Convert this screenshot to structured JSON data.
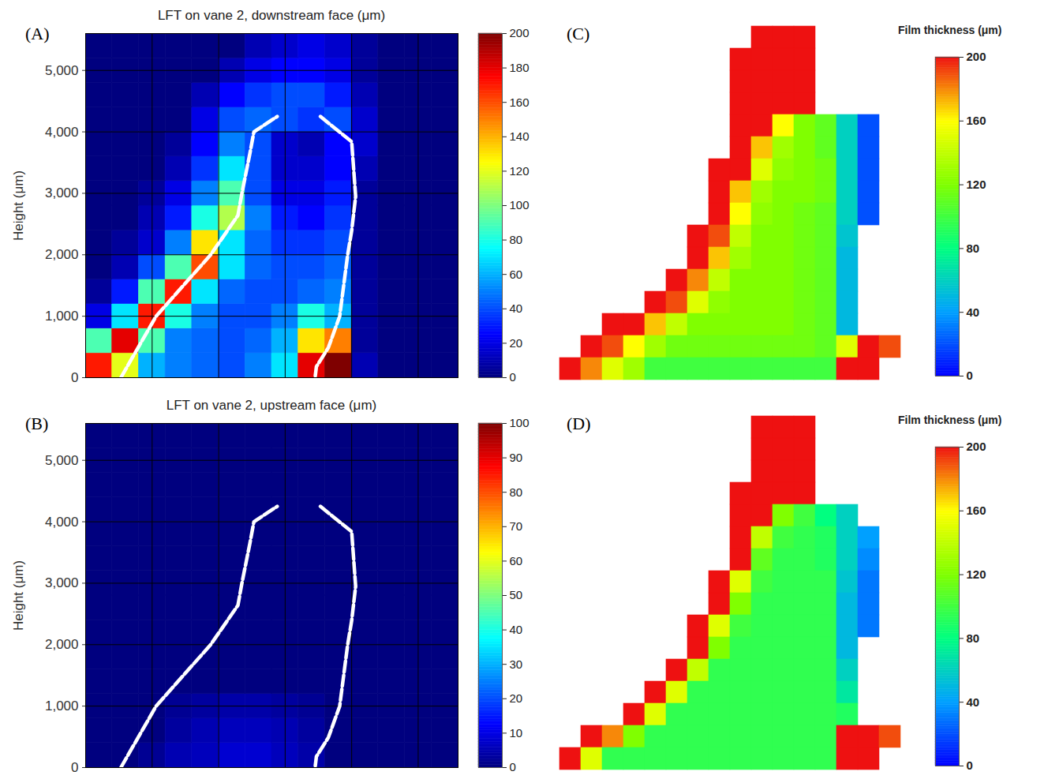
{
  "chart_data": [
    {
      "type": "heatmap",
      "panel": "(A)",
      "title": "LFT on vane 2, downstream face (μm)",
      "y_label": "Height (μm)",
      "xlim": [
        0,
        5600
      ],
      "ylim": [
        0,
        5600
      ],
      "xticks": [
        1000,
        2000,
        3000,
        4000,
        5000
      ],
      "yticks": [
        0,
        {
          "value": 1000,
          "label": "1,000"
        },
        {
          "value": 2000,
          "label": "2,000"
        },
        {
          "value": 3000,
          "label": "3,000"
        },
        {
          "value": 4000,
          "label": "4,000"
        },
        {
          "value": 5000,
          "label": "5,000"
        }
      ],
      "tick_labels": "y",
      "grid": true,
      "x_bins": [
        0,
        400,
        800,
        1200,
        1600,
        2000,
        2400,
        2800,
        3200,
        3600,
        4000,
        4400,
        4800,
        5200,
        5600
      ],
      "y_bins": [
        0,
        400,
        800,
        1200,
        1600,
        2000,
        2400,
        2800,
        3200,
        3600,
        4000,
        4400,
        4800,
        5200,
        5600
      ],
      "cells": [
        [
          170,
          120,
          60,
          50,
          45,
          40,
          50,
          70,
          180,
          200,
          10,
          0,
          0,
          0
        ],
        [
          90,
          180,
          90,
          50,
          45,
          40,
          45,
          60,
          130,
          150,
          5,
          0,
          0,
          0
        ],
        [
          20,
          70,
          170,
          80,
          50,
          40,
          40,
          50,
          80,
          60,
          5,
          0,
          0,
          0
        ],
        [
          5,
          30,
          90,
          170,
          70,
          45,
          40,
          40,
          45,
          50,
          5,
          0,
          0,
          0
        ],
        [
          0,
          10,
          40,
          90,
          160,
          70,
          45,
          40,
          40,
          45,
          5,
          0,
          0,
          0
        ],
        [
          0,
          5,
          15,
          50,
          130,
          70,
          45,
          35,
          35,
          40,
          5,
          0,
          0,
          0
        ],
        [
          0,
          0,
          10,
          30,
          80,
          110,
          50,
          30,
          25,
          35,
          5,
          0,
          0,
          0
        ],
        [
          0,
          0,
          5,
          20,
          50,
          90,
          40,
          20,
          20,
          30,
          5,
          0,
          0,
          0
        ],
        [
          0,
          0,
          0,
          10,
          35,
          70,
          40,
          15,
          15,
          25,
          10,
          0,
          0,
          0
        ],
        [
          0,
          0,
          0,
          5,
          25,
          50,
          40,
          15,
          10,
          25,
          15,
          0,
          0,
          0
        ],
        [
          0,
          0,
          0,
          0,
          20,
          40,
          45,
          40,
          35,
          40,
          15,
          0,
          0,
          0
        ],
        [
          0,
          0,
          0,
          0,
          10,
          25,
          35,
          40,
          40,
          30,
          10,
          0,
          0,
          0
        ],
        [
          0,
          0,
          0,
          0,
          0,
          10,
          20,
          25,
          25,
          20,
          5,
          0,
          0,
          0
        ],
        [
          0,
          0,
          0,
          0,
          0,
          0,
          10,
          15,
          20,
          15,
          5,
          0,
          0,
          0
        ]
      ],
      "outline": {
        "x": [
          530,
          1060,
          1470,
          1880,
          2290,
          2350,
          2470,
          2530,
          2880,
          null,
          3530,
          4000,
          4060,
          4000,
          3940,
          3820,
          3650,
          3470,
          3450
        ],
        "y": [
          0,
          1000,
          1500,
          2000,
          2640,
          3000,
          3650,
          4000,
          4250,
          null,
          4250,
          3840,
          2950,
          2390,
          2000,
          1000,
          490,
          180,
          0
        ]
      },
      "colorbar": {
        "lim": [
          0,
          200
        ],
        "ticks": [
          0,
          20,
          40,
          60,
          80,
          100,
          120,
          140,
          160,
          180,
          200
        ]
      }
    },
    {
      "type": "heatmap",
      "panel": "(B)",
      "title": "LFT on vane 2, upstream face (μm)",
      "y_label": "Height (μm)",
      "xlim": [
        0,
        5600
      ],
      "ylim": [
        0,
        5600
      ],
      "xticks": [
        1000,
        2000,
        3000,
        4000,
        5000
      ],
      "yticks": [
        0,
        {
          "value": 1000,
          "label": "1,000"
        },
        {
          "value": 2000,
          "label": "2,000"
        },
        {
          "value": 3000,
          "label": "3,000"
        },
        {
          "value": 4000,
          "label": "4,000"
        },
        {
          "value": 5000,
          "label": "5,000"
        }
      ],
      "tick_labels": "y",
      "grid": true,
      "x_bins": [
        0,
        400,
        800,
        1200,
        1600,
        2000,
        2400,
        2800,
        3200,
        3600,
        4000,
        4400,
        4800,
        5200,
        5600
      ],
      "y_bins": [
        0,
        400,
        800,
        1200,
        1600,
        2000,
        2400,
        2800,
        3200,
        3600,
        4000,
        4400,
        4800,
        5200,
        5600
      ],
      "cells": [
        [
          0,
          0,
          2,
          5,
          6,
          8,
          8,
          6,
          4,
          0,
          0,
          0,
          0,
          0
        ],
        [
          0,
          0,
          0,
          3,
          5,
          6,
          6,
          5,
          3,
          0,
          0,
          0,
          0,
          0
        ],
        [
          0,
          0,
          0,
          2,
          3,
          4,
          4,
          3,
          2,
          0,
          0,
          0,
          0,
          0
        ],
        [
          0,
          0,
          0,
          0,
          0,
          0,
          0,
          0,
          0,
          0,
          0,
          0,
          0,
          0
        ],
        [
          0,
          0,
          0,
          0,
          0,
          0,
          0,
          0,
          0,
          0,
          0,
          0,
          0,
          0
        ],
        [
          0,
          0,
          0,
          0,
          0,
          0,
          0,
          0,
          0,
          0,
          0,
          0,
          0,
          0
        ],
        [
          0,
          0,
          0,
          0,
          0,
          0,
          0,
          0,
          0,
          0,
          0,
          0,
          0,
          0
        ],
        [
          0,
          0,
          0,
          0,
          0,
          0,
          0,
          0,
          0,
          0,
          0,
          0,
          0,
          0
        ],
        [
          0,
          0,
          0,
          0,
          0,
          0,
          0,
          0,
          0,
          0,
          0,
          0,
          0,
          0
        ],
        [
          0,
          0,
          0,
          0,
          0,
          0,
          0,
          0,
          0,
          0,
          0,
          0,
          0,
          0
        ],
        [
          0,
          0,
          0,
          0,
          0,
          0,
          0,
          0,
          0,
          0,
          0,
          0,
          0,
          0
        ],
        [
          0,
          0,
          0,
          0,
          0,
          0,
          0,
          0,
          0,
          0,
          0,
          0,
          0,
          0
        ],
        [
          0,
          0,
          0,
          0,
          0,
          0,
          0,
          0,
          0,
          0,
          0,
          0,
          0,
          0
        ],
        [
          0,
          0,
          0,
          0,
          0,
          0,
          0,
          0,
          0,
          0,
          0,
          0,
          0,
          0
        ]
      ],
      "outline": {
        "x": [
          530,
          1060,
          1470,
          1880,
          2290,
          2350,
          2470,
          2530,
          2880,
          null,
          3530,
          4000,
          4060,
          4000,
          3940,
          3820,
          3650,
          3470,
          3450
        ],
        "y": [
          0,
          1000,
          1500,
          2000,
          2640,
          3000,
          3650,
          4000,
          4250,
          null,
          4250,
          3840,
          2950,
          2390,
          2000,
          1000,
          490,
          180,
          0
        ]
      },
      "colorbar": {
        "lim": [
          0,
          100
        ],
        "ticks": [
          0,
          10,
          20,
          30,
          40,
          50,
          60,
          70,
          80,
          90,
          100
        ]
      }
    },
    {
      "type": "heatmap",
      "panel": "(C)",
      "tick_labels": false,
      "cells": [
        [
          null,
          null,
          null,
          null,
          null,
          null,
          null,
          null,
          null,
          200,
          200,
          200,
          null,
          null,
          null,
          null
        ],
        [
          null,
          null,
          null,
          null,
          null,
          null,
          null,
          null,
          200,
          200,
          200,
          200,
          null,
          null,
          null,
          null
        ],
        [
          null,
          null,
          null,
          null,
          null,
          null,
          null,
          null,
          200,
          200,
          200,
          200,
          null,
          null,
          null,
          null
        ],
        [
          null,
          null,
          null,
          null,
          null,
          null,
          null,
          null,
          200,
          200,
          200,
          200,
          null,
          null,
          null,
          null
        ],
        [
          null,
          null,
          null,
          null,
          null,
          null,
          null,
          null,
          200,
          200,
          160,
          120,
          110,
          60,
          20,
          null
        ],
        [
          null,
          null,
          null,
          null,
          null,
          null,
          null,
          null,
          200,
          170,
          130,
          120,
          110,
          60,
          20,
          null
        ],
        [
          null,
          null,
          null,
          null,
          null,
          null,
          null,
          200,
          200,
          150,
          125,
          120,
          115,
          60,
          20,
          null
        ],
        [
          null,
          null,
          null,
          null,
          null,
          null,
          null,
          200,
          170,
          130,
          120,
          120,
          115,
          60,
          20,
          null
        ],
        [
          null,
          null,
          null,
          null,
          null,
          null,
          null,
          200,
          160,
          125,
          120,
          115,
          110,
          60,
          20,
          null
        ],
        [
          null,
          null,
          null,
          null,
          null,
          null,
          200,
          190,
          140,
          120,
          120,
          115,
          110,
          55,
          null,
          null
        ],
        [
          null,
          null,
          null,
          null,
          null,
          null,
          200,
          170,
          130,
          120,
          120,
          115,
          110,
          50,
          null,
          null
        ],
        [
          null,
          null,
          null,
          null,
          null,
          200,
          180,
          140,
          120,
          120,
          120,
          115,
          110,
          50,
          null,
          null
        ],
        [
          null,
          null,
          null,
          null,
          200,
          190,
          150,
          125,
          120,
          120,
          120,
          115,
          110,
          50,
          null,
          null
        ],
        [
          null,
          null,
          200,
          200,
          170,
          140,
          120,
          120,
          120,
          120,
          120,
          115,
          110,
          50,
          null,
          null
        ],
        [
          null,
          200,
          190,
          160,
          130,
          115,
          115,
          115,
          115,
          115,
          115,
          115,
          110,
          150,
          200,
          190
        ],
        [
          200,
          180,
          150,
          130,
          100,
          100,
          100,
          100,
          100,
          100,
          100,
          100,
          100,
          200,
          200,
          null
        ]
      ],
      "colorbar": {
        "title": "Film thickness (μm)",
        "lim": [
          0,
          200
        ],
        "ticks": [
          0,
          40,
          80,
          120,
          160,
          200
        ]
      }
    },
    {
      "type": "heatmap",
      "panel": "(D)",
      "tick_labels": false,
      "cells": [
        [
          null,
          null,
          null,
          null,
          null,
          null,
          null,
          null,
          null,
          200,
          200,
          200,
          null,
          null,
          null,
          null
        ],
        [
          null,
          null,
          null,
          null,
          null,
          null,
          null,
          null,
          null,
          200,
          200,
          200,
          null,
          null,
          null,
          null
        ],
        [
          null,
          null,
          null,
          null,
          null,
          null,
          null,
          null,
          null,
          200,
          200,
          200,
          null,
          null,
          null,
          null
        ],
        [
          null,
          null,
          null,
          null,
          null,
          null,
          null,
          null,
          200,
          200,
          200,
          200,
          null,
          null,
          null,
          null
        ],
        [
          null,
          null,
          null,
          null,
          null,
          null,
          null,
          null,
          200,
          200,
          120,
          100,
          80,
          60,
          null,
          null
        ],
        [
          null,
          null,
          null,
          null,
          null,
          null,
          null,
          null,
          200,
          140,
          100,
          95,
          90,
          60,
          40,
          null
        ],
        [
          null,
          null,
          null,
          null,
          null,
          null,
          null,
          null,
          200,
          110,
          95,
          95,
          90,
          60,
          35,
          null
        ],
        [
          null,
          null,
          null,
          null,
          null,
          null,
          null,
          200,
          150,
          100,
          95,
          95,
          95,
          55,
          30,
          null
        ],
        [
          null,
          null,
          null,
          null,
          null,
          null,
          null,
          200,
          120,
          95,
          95,
          95,
          95,
          50,
          30,
          null
        ],
        [
          null,
          null,
          null,
          null,
          null,
          null,
          200,
          150,
          100,
          95,
          95,
          95,
          95,
          50,
          30,
          null
        ],
        [
          null,
          null,
          null,
          null,
          null,
          null,
          200,
          120,
          95,
          95,
          95,
          95,
          95,
          50,
          null,
          null
        ],
        [
          null,
          null,
          null,
          null,
          null,
          200,
          140,
          95,
          95,
          95,
          95,
          95,
          95,
          60,
          null,
          null
        ],
        [
          null,
          null,
          null,
          null,
          200,
          150,
          95,
          95,
          95,
          95,
          95,
          95,
          95,
          70,
          null,
          null
        ],
        [
          null,
          null,
          null,
          200,
          150,
          95,
          95,
          95,
          95,
          95,
          95,
          95,
          95,
          90,
          null,
          null
        ],
        [
          null,
          200,
          180,
          120,
          95,
          95,
          95,
          95,
          95,
          95,
          95,
          95,
          95,
          200,
          200,
          190
        ],
        [
          200,
          150,
          95,
          95,
          95,
          95,
          95,
          95,
          95,
          95,
          95,
          95,
          95,
          200,
          200,
          null
        ]
      ],
      "colorbar": {
        "title": "Film thickness (μm)",
        "lim": [
          0,
          200
        ],
        "ticks": [
          0,
          40,
          80,
          120,
          160,
          200
        ]
      }
    }
  ]
}
